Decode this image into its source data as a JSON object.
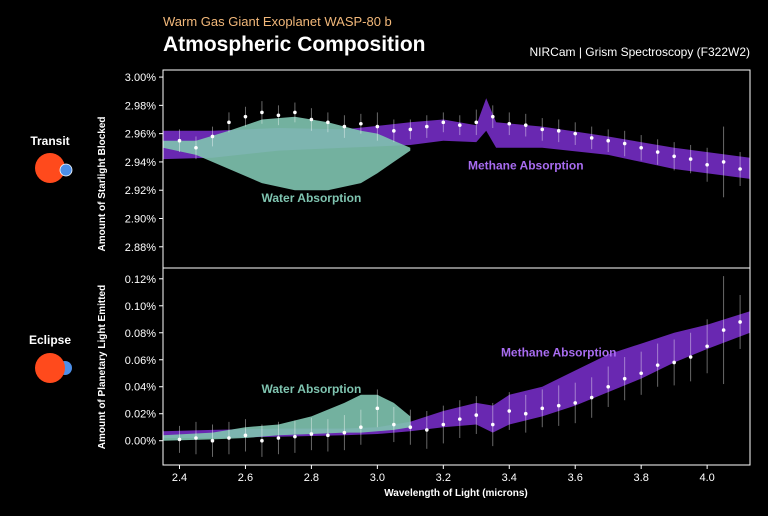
{
  "header": {
    "subtitle": "Warm Gas Giant Exoplanet WASP-80 b",
    "title": "Atmospheric Composition",
    "instrument": "NIRCam | Grism Spectroscopy (F322W2)"
  },
  "side": {
    "transit_label": "Transit",
    "eclipse_label": "Eclipse",
    "star_color": "#ff4a1c",
    "planet_color": "#4d8fe8"
  },
  "colors": {
    "water": "#7fc4b0",
    "methane": "#7b2fd0",
    "frame": "#ffffff"
  },
  "chart_data": [
    {
      "type": "area",
      "panel": "transit",
      "xlabel": "",
      "ylabel": "Amount of Starlight Blocked",
      "xlim": [
        2.35,
        4.13
      ],
      "ylim": [
        2.865,
        3.005
      ],
      "yticks": [
        "2.88%",
        "2.90%",
        "2.92%",
        "2.94%",
        "2.96%",
        "2.98%",
        "3.00%"
      ],
      "ytick_values": [
        2.88,
        2.9,
        2.92,
        2.94,
        2.96,
        2.98,
        3.0
      ],
      "annotations": {
        "water": "Water Absorption",
        "methane": "Methane Absorption"
      },
      "series": [
        {
          "name": "Water Absorption",
          "x": [
            2.35,
            2.45,
            2.55,
            2.65,
            2.75,
            2.85,
            2.95,
            3.0,
            3.05,
            3.1
          ],
          "upper": [
            2.955,
            2.955,
            2.962,
            2.97,
            2.972,
            2.968,
            2.962,
            2.96,
            2.955,
            2.95
          ],
          "lower": [
            2.95,
            2.945,
            2.935,
            2.925,
            2.92,
            2.92,
            2.925,
            2.932,
            2.94,
            2.948
          ]
        },
        {
          "name": "Methane Absorption",
          "x": [
            2.35,
            2.5,
            2.7,
            2.9,
            3.1,
            3.2,
            3.3,
            3.33,
            3.36,
            3.5,
            3.7,
            3.9,
            4.13
          ],
          "upper": [
            2.962,
            2.962,
            2.964,
            2.963,
            2.968,
            2.97,
            2.966,
            2.985,
            2.968,
            2.965,
            2.958,
            2.95,
            2.943
          ],
          "lower": [
            2.942,
            2.943,
            2.948,
            2.95,
            2.952,
            2.955,
            2.954,
            2.962,
            2.95,
            2.95,
            2.945,
            2.935,
            2.928
          ]
        }
      ],
      "points": {
        "x": [
          2.4,
          2.45,
          2.5,
          2.55,
          2.6,
          2.65,
          2.7,
          2.75,
          2.8,
          2.85,
          2.9,
          2.95,
          3.0,
          3.05,
          3.1,
          3.15,
          3.2,
          3.25,
          3.3,
          3.35,
          3.4,
          3.45,
          3.5,
          3.55,
          3.6,
          3.65,
          3.7,
          3.75,
          3.8,
          3.85,
          3.9,
          3.95,
          4.0,
          4.05,
          4.1
        ],
        "y": [
          2.955,
          2.95,
          2.958,
          2.968,
          2.972,
          2.975,
          2.973,
          2.975,
          2.97,
          2.968,
          2.965,
          2.967,
          2.965,
          2.962,
          2.963,
          2.965,
          2.968,
          2.966,
          2.968,
          2.972,
          2.967,
          2.966,
          2.963,
          2.962,
          2.96,
          2.957,
          2.955,
          2.953,
          2.95,
          2.947,
          2.944,
          2.942,
          2.938,
          2.94,
          2.935
        ],
        "err": [
          0.008,
          0.008,
          0.007,
          0.007,
          0.007,
          0.008,
          0.007,
          0.007,
          0.008,
          0.007,
          0.008,
          0.007,
          0.01,
          0.008,
          0.007,
          0.008,
          0.007,
          0.007,
          0.009,
          0.008,
          0.008,
          0.008,
          0.008,
          0.008,
          0.008,
          0.008,
          0.008,
          0.009,
          0.009,
          0.009,
          0.01,
          0.01,
          0.012,
          0.025,
          0.012
        ]
      }
    },
    {
      "type": "area",
      "panel": "eclipse",
      "xlabel": "Wavelength of Light (microns)",
      "ylabel": "Amount of Planetary Light Emitted",
      "xlim": [
        2.35,
        4.13
      ],
      "ylim": [
        -0.018,
        0.128
      ],
      "xticks": [
        "2.4",
        "2.6",
        "2.8",
        "3.0",
        "3.2",
        "3.4",
        "3.6",
        "3.8",
        "4.0"
      ],
      "xtick_values": [
        2.4,
        2.6,
        2.8,
        3.0,
        3.2,
        3.4,
        3.6,
        3.8,
        4.0
      ],
      "yticks": [
        "0.00%",
        "0.02%",
        "0.04%",
        "0.06%",
        "0.08%",
        "0.10%",
        "0.12%"
      ],
      "ytick_values": [
        0.0,
        0.02,
        0.04,
        0.06,
        0.08,
        0.1,
        0.12
      ],
      "annotations": {
        "water": "Water Absorption",
        "methane": "Methane Absorption"
      },
      "series": [
        {
          "name": "Water Absorption",
          "x": [
            2.35,
            2.5,
            2.6,
            2.7,
            2.8,
            2.9,
            2.95,
            3.0,
            3.05,
            3.1
          ],
          "upper": [
            0.004,
            0.006,
            0.01,
            0.012,
            0.018,
            0.028,
            0.034,
            0.034,
            0.028,
            0.018
          ],
          "lower": [
            0.0,
            0.001,
            0.002,
            0.004,
            0.005,
            0.006,
            0.006,
            0.007,
            0.008,
            0.01
          ]
        },
        {
          "name": "Methane Absorption",
          "x": [
            2.35,
            2.5,
            2.7,
            2.9,
            3.0,
            3.1,
            3.2,
            3.3,
            3.35,
            3.4,
            3.5,
            3.6,
            3.7,
            3.8,
            3.9,
            4.0,
            4.13
          ],
          "upper": [
            0.007,
            0.008,
            0.009,
            0.009,
            0.01,
            0.014,
            0.022,
            0.028,
            0.026,
            0.034,
            0.04,
            0.052,
            0.064,
            0.072,
            0.08,
            0.086,
            0.096
          ],
          "lower": [
            0.002,
            0.002,
            0.003,
            0.004,
            0.005,
            0.007,
            0.01,
            0.012,
            0.006,
            0.012,
            0.018,
            0.026,
            0.036,
            0.046,
            0.058,
            0.068,
            0.08
          ]
        }
      ],
      "points": {
        "x": [
          2.4,
          2.45,
          2.5,
          2.55,
          2.6,
          2.65,
          2.7,
          2.75,
          2.8,
          2.85,
          2.9,
          2.95,
          3.0,
          3.05,
          3.1,
          3.15,
          3.2,
          3.25,
          3.3,
          3.35,
          3.4,
          3.45,
          3.5,
          3.55,
          3.6,
          3.65,
          3.7,
          3.75,
          3.8,
          3.85,
          3.9,
          3.95,
          4.0,
          4.05,
          4.1
        ],
        "y": [
          0.001,
          0.002,
          0.0,
          0.002,
          0.004,
          0.0,
          0.002,
          0.003,
          0.005,
          0.004,
          0.006,
          0.01,
          0.024,
          0.012,
          0.01,
          0.008,
          0.012,
          0.016,
          0.019,
          0.012,
          0.022,
          0.02,
          0.024,
          0.026,
          0.028,
          0.032,
          0.04,
          0.046,
          0.05,
          0.056,
          0.058,
          0.062,
          0.07,
          0.082,
          0.088
        ],
        "err": [
          0.01,
          0.012,
          0.012,
          0.012,
          0.012,
          0.012,
          0.012,
          0.012,
          0.012,
          0.012,
          0.013,
          0.013,
          0.014,
          0.013,
          0.013,
          0.014,
          0.014,
          0.014,
          0.014,
          0.016,
          0.014,
          0.014,
          0.014,
          0.015,
          0.015,
          0.015,
          0.015,
          0.016,
          0.016,
          0.016,
          0.017,
          0.018,
          0.02,
          0.04,
          0.02
        ]
      }
    }
  ]
}
